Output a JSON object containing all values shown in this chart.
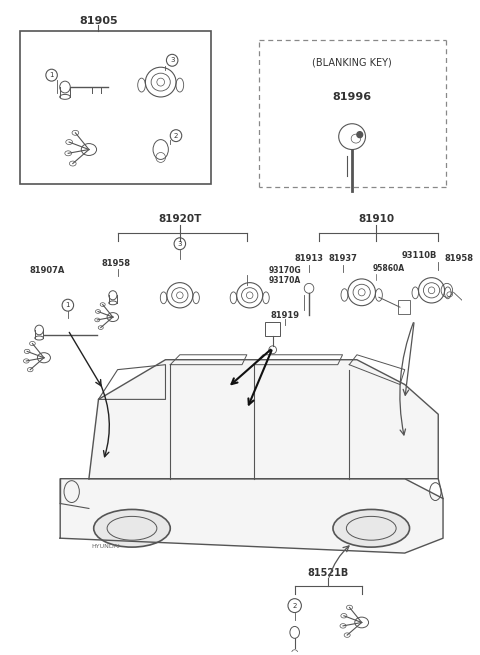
{
  "background_color": "#ffffff",
  "text_color": "#333333",
  "line_color": "#555555",
  "box1_label": "81905",
  "box2_label": "(BLANKING KEY)",
  "box2_sublabel": "81996",
  "section2_label": "81920T",
  "label_81910": "81910",
  "label_81907A": "81907A",
  "label_81958a": "81958",
  "label_93170G": "93170G",
  "label_93170A": "93170A",
  "label_81913": "81913",
  "label_81937": "81937",
  "label_95860A": "95860A",
  "label_93110B": "93110B",
  "label_81958b": "81958",
  "label_81919": "81919",
  "label_81521B": "81521B"
}
